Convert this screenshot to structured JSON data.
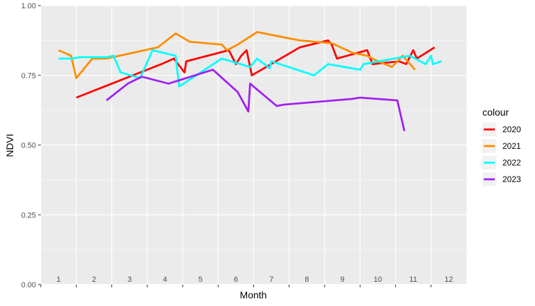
{
  "chart_data": {
    "type": "line",
    "xlabel": "Month",
    "ylabel": "NDVI",
    "xlim": [
      1,
      13
    ],
    "ylim": [
      0,
      1
    ],
    "y_ticks": [
      0,
      0.25,
      0.5,
      0.75,
      1.0
    ],
    "y_tick_labels": [
      "0.00",
      "0.25",
      "0.50",
      "0.75",
      "1.00"
    ],
    "x_tick_labels": [
      "1",
      "2",
      "3",
      "4",
      "5",
      "6",
      "7",
      "8",
      "9",
      "10",
      "11",
      "12"
    ],
    "grid": true,
    "legend": {
      "title": "colour",
      "position": "right"
    },
    "series": [
      {
        "name": "2020",
        "color": "#ff0000",
        "points": [
          [
            1.5,
            0.67
          ],
          [
            3.9,
            0.79
          ],
          [
            4.25,
            0.81
          ],
          [
            4.55,
            0.76
          ],
          [
            4.6,
            0.8
          ],
          [
            5.8,
            0.84
          ],
          [
            6.0,
            0.79
          ],
          [
            6.15,
            0.82
          ],
          [
            6.3,
            0.84
          ],
          [
            6.45,
            0.75
          ],
          [
            7.8,
            0.85
          ],
          [
            8.6,
            0.875
          ],
          [
            8.7,
            0.86
          ],
          [
            8.85,
            0.81
          ],
          [
            9.7,
            0.84
          ],
          [
            9.85,
            0.79
          ],
          [
            10.6,
            0.8
          ],
          [
            10.8,
            0.79
          ],
          [
            11.0,
            0.84
          ],
          [
            11.1,
            0.81
          ],
          [
            11.6,
            0.85
          ]
        ]
      },
      {
        "name": "2021",
        "color": "#ff8c00",
        "points": [
          [
            1.0,
            0.84
          ],
          [
            1.35,
            0.82
          ],
          [
            1.5,
            0.74
          ],
          [
            1.95,
            0.81
          ],
          [
            2.35,
            0.81
          ],
          [
            3.8,
            0.85
          ],
          [
            4.3,
            0.9
          ],
          [
            4.7,
            0.87
          ],
          [
            5.6,
            0.86
          ],
          [
            5.75,
            0.84
          ],
          [
            6.05,
            0.86
          ],
          [
            6.6,
            0.905
          ],
          [
            7.8,
            0.875
          ],
          [
            8.7,
            0.865
          ],
          [
            9.3,
            0.83
          ],
          [
            9.7,
            0.82
          ],
          [
            10.0,
            0.8
          ],
          [
            10.4,
            0.78
          ],
          [
            10.7,
            0.82
          ],
          [
            11.05,
            0.77
          ]
        ]
      },
      {
        "name": "2022",
        "color": "#00ffff",
        "points": [
          [
            1.0,
            0.81
          ],
          [
            1.35,
            0.81
          ],
          [
            1.6,
            0.815
          ],
          [
            2.35,
            0.815
          ],
          [
            2.55,
            0.82
          ],
          [
            2.75,
            0.76
          ],
          [
            3.3,
            0.74
          ],
          [
            3.65,
            0.84
          ],
          [
            4.3,
            0.82
          ],
          [
            4.4,
            0.71
          ],
          [
            5.6,
            0.81
          ],
          [
            6.4,
            0.78
          ],
          [
            6.6,
            0.81
          ],
          [
            6.95,
            0.775
          ],
          [
            7.0,
            0.8
          ],
          [
            8.2,
            0.75
          ],
          [
            8.6,
            0.79
          ],
          [
            9.5,
            0.77
          ],
          [
            9.6,
            0.79
          ],
          [
            10.9,
            0.82
          ],
          [
            11.35,
            0.79
          ],
          [
            11.5,
            0.82
          ],
          [
            11.55,
            0.79
          ],
          [
            11.8,
            0.8
          ]
        ]
      },
      {
        "name": "2023",
        "color": "#a020f0",
        "points": [
          [
            2.35,
            0.66
          ],
          [
            2.95,
            0.72
          ],
          [
            3.35,
            0.745
          ],
          [
            4.1,
            0.72
          ],
          [
            5.35,
            0.77
          ],
          [
            6.05,
            0.69
          ],
          [
            6.35,
            0.62
          ],
          [
            6.4,
            0.72
          ],
          [
            7.15,
            0.64
          ],
          [
            7.35,
            0.645
          ],
          [
            9.25,
            0.665
          ],
          [
            9.5,
            0.67
          ],
          [
            10.55,
            0.66
          ],
          [
            10.75,
            0.55
          ]
        ]
      }
    ]
  }
}
